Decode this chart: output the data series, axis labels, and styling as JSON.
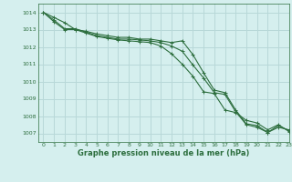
{
  "background_color": "#d5efee",
  "grid_color": "#b8d8d8",
  "line_color": "#2d6e3e",
  "xlabel": "Graphe pression niveau de la mer (hPa)",
  "xlim": [
    -0.5,
    23
  ],
  "ylim": [
    1006.5,
    1014.5
  ],
  "yticks": [
    1007,
    1008,
    1009,
    1010,
    1011,
    1012,
    1013,
    1014
  ],
  "xticks": [
    0,
    1,
    2,
    3,
    4,
    5,
    6,
    7,
    8,
    9,
    10,
    11,
    12,
    13,
    14,
    15,
    16,
    17,
    18,
    19,
    20,
    21,
    22,
    23
  ],
  "series": [
    [
      1014.0,
      1013.7,
      1013.4,
      1013.0,
      1012.9,
      1012.75,
      1012.65,
      1012.55,
      1012.55,
      1012.45,
      1012.45,
      1012.35,
      1012.25,
      1012.35,
      1011.55,
      1010.5,
      1009.5,
      1009.35,
      1008.35,
      1007.55,
      1007.45,
      1007.05,
      1007.45,
      1007.15
    ],
    [
      1014.0,
      1013.55,
      1013.05,
      1013.05,
      1012.85,
      1012.65,
      1012.55,
      1012.45,
      1012.45,
      1012.4,
      1012.35,
      1012.25,
      1012.05,
      1011.75,
      1010.95,
      1010.2,
      1009.35,
      1009.25,
      1008.25,
      1007.5,
      1007.35,
      1007.05,
      1007.35,
      1007.2
    ],
    [
      1014.0,
      1013.45,
      1013.0,
      1013.0,
      1012.8,
      1012.6,
      1012.5,
      1012.4,
      1012.35,
      1012.3,
      1012.25,
      1012.05,
      1011.6,
      1011.0,
      1010.3,
      1009.4,
      1009.3,
      1008.35,
      1008.2,
      1007.75,
      1007.6,
      1007.2,
      1007.5,
      1007.1
    ]
  ],
  "figsize": [
    3.2,
    2.0
  ],
  "dpi": 100
}
